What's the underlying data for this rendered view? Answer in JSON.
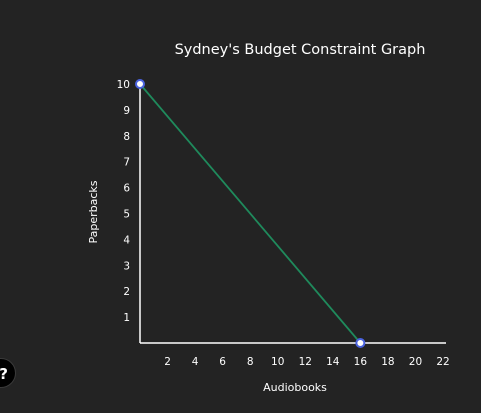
{
  "chart_data": {
    "type": "line",
    "title": "Sydney's Budget Constraint Graph",
    "xlabel": "Audiobooks",
    "ylabel": "Paperbacks",
    "xticks": [
      2,
      4,
      6,
      8,
      10,
      12,
      14,
      16,
      18,
      20,
      22
    ],
    "yticks": [
      1,
      2,
      3,
      4,
      5,
      6,
      7,
      8,
      9,
      10
    ],
    "xlim": [
      0,
      22
    ],
    "ylim": [
      0,
      10
    ],
    "grid": false,
    "legend": "none",
    "series": [
      {
        "x": [
          0,
          16
        ],
        "y": [
          10,
          0
        ],
        "color": "#1f8a5c",
        "marker_fill": "#ffffff",
        "marker_stroke": "#4a63e0"
      }
    ]
  },
  "colors": {
    "background": "#232323",
    "axis": "#ffffff",
    "text": "#ffffff"
  },
  "edge_button": {
    "icon": "chat-bubble-icon",
    "glyph": "?"
  }
}
